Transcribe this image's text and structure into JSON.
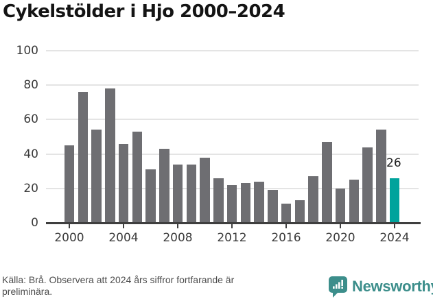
{
  "title": "Cykelstölder i Hjo 2000–2024",
  "chart_data": {
    "type": "bar",
    "title": "Cykelstölder i Hjo 2000–2024",
    "categories": [
      2000,
      2001,
      2002,
      2003,
      2004,
      2005,
      2006,
      2007,
      2008,
      2009,
      2010,
      2011,
      2012,
      2013,
      2014,
      2015,
      2016,
      2017,
      2018,
      2019,
      2020,
      2021,
      2022,
      2023,
      2024
    ],
    "values": [
      45,
      76,
      54,
      78,
      46,
      53,
      31,
      43,
      34,
      34,
      38,
      26,
      22,
      23,
      24,
      19,
      11,
      13,
      27,
      47,
      20,
      25,
      44,
      54,
      26
    ],
    "xlabel": "",
    "ylabel": "",
    "ylim": [
      0,
      100
    ],
    "yticks": [
      0,
      20,
      40,
      60,
      80,
      100
    ],
    "xticks": [
      2000,
      2004,
      2008,
      2012,
      2016,
      2020,
      2024
    ],
    "grid": "horizontal",
    "legend": "none",
    "highlight_category": 2024,
    "highlight_value_label": "26",
    "colors": {
      "bar": "#6e6e72",
      "highlight": "#00a39c",
      "gridline": "#e4e4e4",
      "axis": "#3f3f3f",
      "label_text": "#3b3b3b"
    }
  },
  "footer": {
    "source_text": "Källa: Brå. Observera att 2024 års siffror fortfarande är\npreliminära.",
    "brand_name": "Newsworthy",
    "brand_color": "#3c8e8b",
    "brand_icon": "speech-bubble-bar-chart-icon"
  }
}
